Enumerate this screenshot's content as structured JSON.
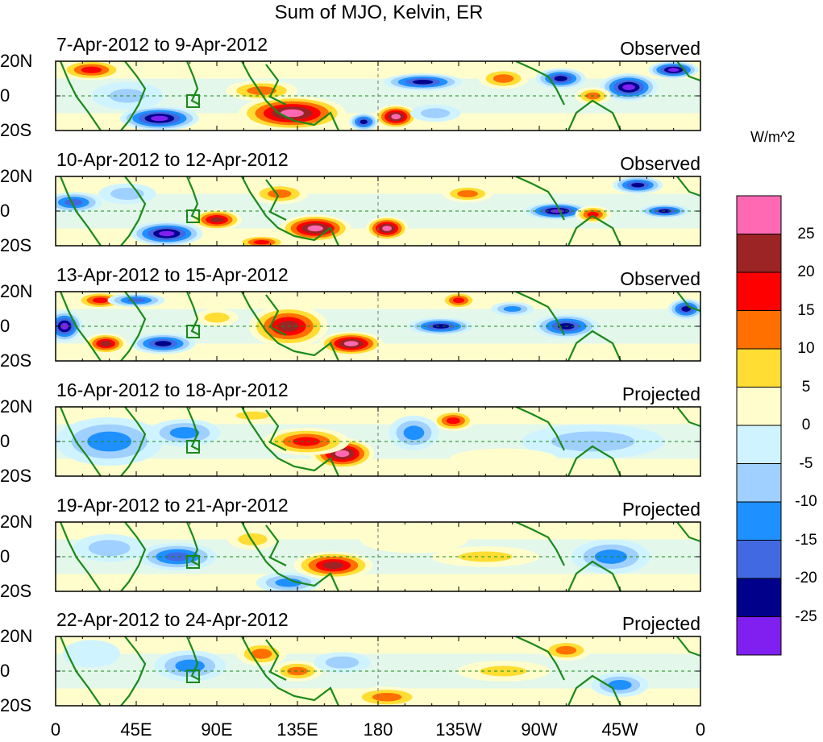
{
  "title": "Sum of MJO, Kelvin, ER",
  "units": "W/m^2",
  "lat_labels": [
    "20N",
    "0",
    "20S"
  ],
  "lon_labels": [
    "0",
    "45E",
    "90E",
    "135E",
    "180",
    "135W",
    "90W",
    "45W",
    "0"
  ],
  "colorbar": {
    "labels": [
      "25",
      "20",
      "15",
      "10",
      "5",
      "0",
      "-5",
      "-10",
      "-15",
      "-20",
      "-25"
    ],
    "colors": [
      "#ff69b4",
      "#9c2424",
      "#ff0000",
      "#ff7000",
      "#ffdd33",
      "#fffdcc",
      "#d0f4ff",
      "#a0d0ff",
      "#1e90ff",
      "#4169e1",
      "#00008b",
      "#8020f0"
    ]
  },
  "panels": [
    {
      "dates": "7-Apr-2012 to 9-Apr-2012",
      "type": "Observed",
      "blobs": [
        [
          20,
          15,
          18,
          6,
          20
        ],
        [
          58,
          -13,
          22,
          7,
          -30
        ],
        [
          132,
          -10,
          30,
          10,
          30
        ],
        [
          115,
          3,
          20,
          6,
          15
        ],
        [
          190,
          -12,
          12,
          7,
          30
        ],
        [
          172,
          -15,
          8,
          5,
          -25
        ],
        [
          205,
          8,
          22,
          5,
          -25
        ],
        [
          250,
          10,
          14,
          6,
          15
        ],
        [
          282,
          10,
          14,
          6,
          -25
        ],
        [
          320,
          5,
          16,
          8,
          -30
        ],
        [
          345,
          15,
          14,
          5,
          -30
        ],
        [
          212,
          -10,
          14,
          5,
          -10
        ],
        [
          300,
          0,
          10,
          5,
          15
        ],
        [
          40,
          0,
          20,
          8,
          -8
        ]
      ]
    },
    {
      "dates": "10-Apr-2012 to 12-Apr-2012",
      "type": "Observed",
      "blobs": [
        [
          10,
          5,
          16,
          6,
          -20
        ],
        [
          62,
          -13,
          20,
          7,
          -30
        ],
        [
          90,
          -5,
          14,
          6,
          25
        ],
        [
          125,
          10,
          16,
          6,
          15
        ],
        [
          145,
          -10,
          20,
          8,
          30
        ],
        [
          185,
          -10,
          12,
          7,
          30
        ],
        [
          115,
          -18,
          14,
          4,
          20
        ],
        [
          230,
          10,
          14,
          5,
          15
        ],
        [
          280,
          0,
          18,
          5,
          -30
        ],
        [
          300,
          -2,
          10,
          5,
          20
        ],
        [
          340,
          0,
          14,
          4,
          -25
        ],
        [
          325,
          15,
          14,
          5,
          -25
        ],
        [
          40,
          10,
          16,
          6,
          -10
        ]
      ]
    },
    {
      "dates": "13-Apr-2012 to 15-Apr-2012",
      "type": "Observed",
      "blobs": [
        [
          5,
          0,
          10,
          9,
          -30
        ],
        [
          25,
          15,
          14,
          5,
          20
        ],
        [
          28,
          -10,
          12,
          6,
          25
        ],
        [
          60,
          -10,
          18,
          6,
          -25
        ],
        [
          45,
          15,
          16,
          4,
          -20
        ],
        [
          130,
          0,
          22,
          12,
          25
        ],
        [
          165,
          -10,
          18,
          7,
          30
        ],
        [
          215,
          0,
          18,
          5,
          -25
        ],
        [
          225,
          15,
          10,
          5,
          20
        ],
        [
          285,
          0,
          18,
          7,
          -25
        ],
        [
          255,
          10,
          12,
          4,
          -15
        ],
        [
          352,
          10,
          10,
          6,
          -25
        ],
        [
          90,
          5,
          12,
          5,
          10
        ]
      ]
    },
    {
      "dates": "16-Apr-2012 to 18-Apr-2012",
      "type": "Projected",
      "blobs": [
        [
          30,
          0,
          30,
          14,
          -15
        ],
        [
          72,
          5,
          20,
          8,
          -15
        ],
        [
          160,
          -7,
          18,
          9,
          30
        ],
        [
          140,
          0,
          24,
          8,
          20
        ],
        [
          222,
          12,
          12,
          6,
          20
        ],
        [
          200,
          5,
          14,
          10,
          -15
        ],
        [
          300,
          0,
          40,
          10,
          -10
        ],
        [
          110,
          15,
          16,
          4,
          10
        ],
        [
          250,
          -10,
          30,
          6,
          5
        ]
      ]
    },
    {
      "dates": "19-Apr-2012 to 21-Apr-2012",
      "type": "Projected",
      "blobs": [
        [
          68,
          0,
          22,
          8,
          -20
        ],
        [
          130,
          -15,
          18,
          6,
          -15
        ],
        [
          155,
          -5,
          22,
          8,
          25
        ],
        [
          30,
          5,
          20,
          8,
          -10
        ],
        [
          200,
          10,
          30,
          8,
          5
        ],
        [
          310,
          0,
          22,
          10,
          -15
        ],
        [
          240,
          0,
          30,
          6,
          8
        ],
        [
          110,
          10,
          14,
          6,
          10
        ]
      ]
    },
    {
      "dates": "22-Apr-2012 to 24-Apr-2012",
      "type": "Projected",
      "blobs": [
        [
          75,
          3,
          20,
          9,
          -15
        ],
        [
          115,
          10,
          14,
          7,
          15
        ],
        [
          135,
          0,
          14,
          6,
          15
        ],
        [
          185,
          -15,
          20,
          6,
          15
        ],
        [
          285,
          12,
          14,
          6,
          15
        ],
        [
          315,
          -8,
          16,
          7,
          -15
        ],
        [
          250,
          0,
          26,
          6,
          8
        ],
        [
          20,
          10,
          16,
          8,
          -5
        ],
        [
          160,
          5,
          16,
          6,
          -10
        ]
      ]
    }
  ]
}
